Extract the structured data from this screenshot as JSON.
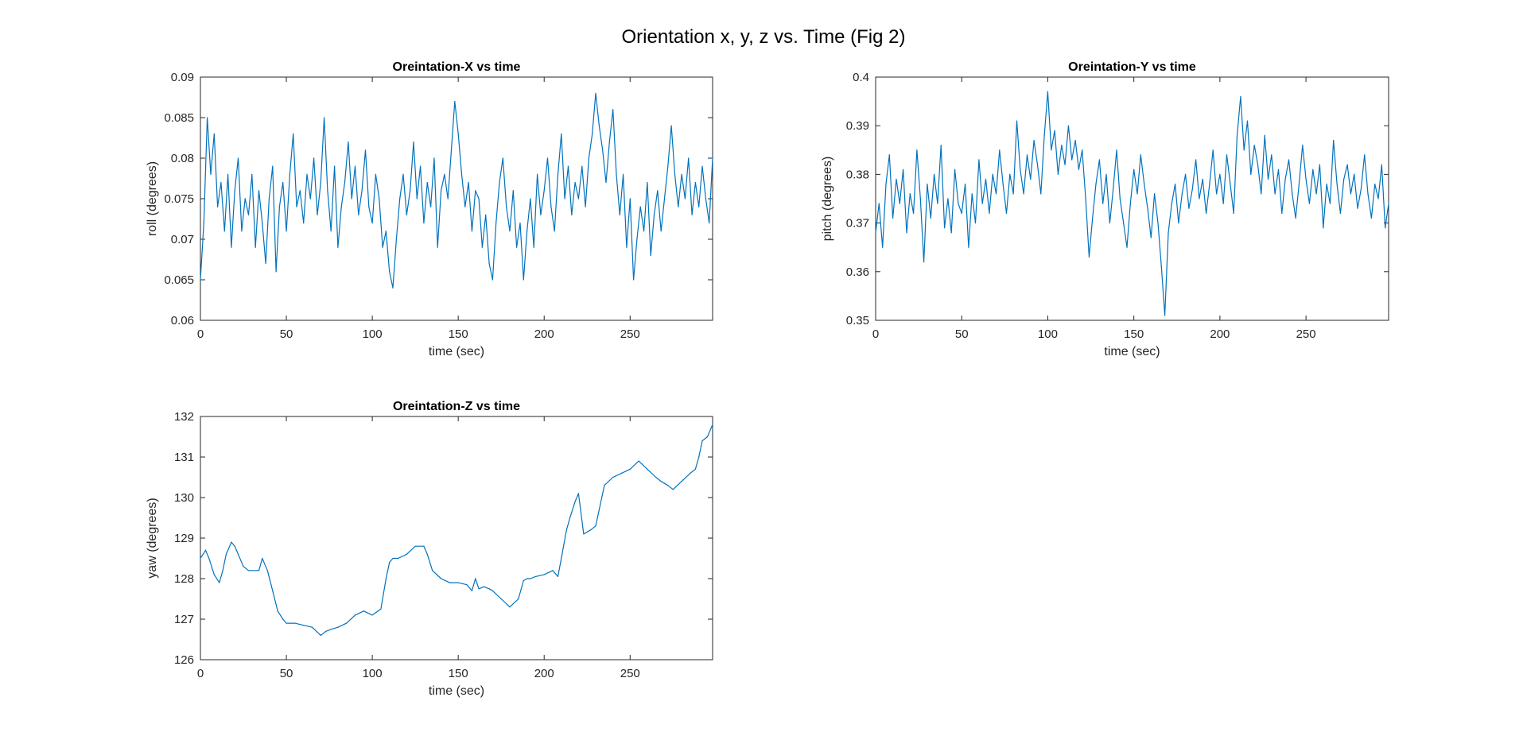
{
  "figure": {
    "title": "Orientation x, y, z vs. Time (Fig 2)"
  },
  "chart_data": [
    {
      "type": "line",
      "title": "Oreintation-X vs time",
      "xlabel": "time (sec)",
      "ylabel": "roll (degrees)",
      "xlim": [
        0,
        298
      ],
      "ylim": [
        0.06,
        0.09
      ],
      "xticks": [
        0,
        50,
        100,
        150,
        200,
        250
      ],
      "xtick_labels": [
        "0",
        "50",
        "100",
        "150",
        "200",
        "250"
      ],
      "yticks": [
        0.06,
        0.065,
        0.07,
        0.075,
        0.08,
        0.085,
        0.09
      ],
      "ytick_labels": [
        "0.06",
        "0.065",
        "0.07",
        "0.075",
        "0.08",
        "0.085",
        "0.09"
      ],
      "grid": false,
      "color": "#0072BD",
      "series": [
        {
          "x": [
            0,
            2,
            4,
            6,
            8,
            10,
            12,
            14,
            16,
            18,
            20,
            22,
            24,
            26,
            28,
            30,
            32,
            34,
            36,
            38,
            40,
            42,
            44,
            46,
            48,
            50,
            52,
            54,
            56,
            58,
            60,
            62,
            64,
            66,
            68,
            70,
            72,
            74,
            76,
            78,
            80,
            82,
            84,
            86,
            88,
            90,
            92,
            94,
            96,
            98,
            100,
            102,
            104,
            106,
            108,
            110,
            112,
            114,
            116,
            118,
            120,
            122,
            124,
            126,
            128,
            130,
            132,
            134,
            136,
            138,
            140,
            142,
            144,
            146,
            148,
            150,
            152,
            154,
            156,
            158,
            160,
            162,
            164,
            166,
            168,
            170,
            172,
            174,
            176,
            178,
            180,
            182,
            184,
            186,
            188,
            190,
            192,
            194,
            196,
            198,
            200,
            202,
            204,
            206,
            208,
            210,
            212,
            214,
            216,
            218,
            220,
            222,
            224,
            226,
            228,
            230,
            232,
            234,
            236,
            238,
            240,
            242,
            244,
            246,
            248,
            250,
            252,
            254,
            256,
            258,
            260,
            262,
            264,
            266,
            268,
            270,
            272,
            274,
            276,
            278,
            280,
            282,
            284,
            286,
            288,
            290,
            292,
            294,
            296,
            298
          ],
          "y": [
            0.065,
            0.072,
            0.085,
            0.078,
            0.083,
            0.074,
            0.077,
            0.071,
            0.078,
            0.069,
            0.076,
            0.08,
            0.071,
            0.075,
            0.073,
            0.078,
            0.069,
            0.076,
            0.072,
            0.067,
            0.075,
            0.079,
            0.066,
            0.074,
            0.077,
            0.071,
            0.078,
            0.083,
            0.074,
            0.076,
            0.072,
            0.078,
            0.075,
            0.08,
            0.073,
            0.077,
            0.085,
            0.076,
            0.071,
            0.079,
            0.069,
            0.074,
            0.077,
            0.082,
            0.075,
            0.079,
            0.073,
            0.076,
            0.081,
            0.074,
            0.072,
            0.078,
            0.075,
            0.069,
            0.071,
            0.066,
            0.064,
            0.07,
            0.075,
            0.078,
            0.073,
            0.076,
            0.082,
            0.075,
            0.079,
            0.072,
            0.077,
            0.074,
            0.08,
            0.069,
            0.076,
            0.078,
            0.075,
            0.081,
            0.087,
            0.083,
            0.078,
            0.074,
            0.077,
            0.071,
            0.076,
            0.075,
            0.069,
            0.073,
            0.067,
            0.065,
            0.072,
            0.077,
            0.08,
            0.074,
            0.071,
            0.076,
            0.069,
            0.072,
            0.065,
            0.071,
            0.075,
            0.069,
            0.078,
            0.073,
            0.076,
            0.08,
            0.074,
            0.071,
            0.078,
            0.083,
            0.075,
            0.079,
            0.073,
            0.077,
            0.075,
            0.079,
            0.074,
            0.08,
            0.083,
            0.088,
            0.084,
            0.081,
            0.077,
            0.082,
            0.086,
            0.078,
            0.073,
            0.078,
            0.069,
            0.075,
            0.065,
            0.07,
            0.074,
            0.071,
            0.077,
            0.068,
            0.073,
            0.076,
            0.071,
            0.075,
            0.079,
            0.084,
            0.078,
            0.074,
            0.078,
            0.075,
            0.08,
            0.073,
            0.077,
            0.074,
            0.079,
            0.075,
            0.072,
            0.08
          ]
        }
      ]
    },
    {
      "type": "line",
      "title": "Oreintation-Y vs time",
      "xlabel": "time (sec)",
      "ylabel": "pitch (degrees)",
      "xlim": [
        0,
        298
      ],
      "ylim": [
        0.35,
        0.4
      ],
      "xticks": [
        0,
        50,
        100,
        150,
        200,
        250
      ],
      "xtick_labels": [
        "0",
        "50",
        "100",
        "150",
        "200",
        "250"
      ],
      "yticks": [
        0.35,
        0.36,
        0.37,
        0.38,
        0.39,
        0.4
      ],
      "ytick_labels": [
        "0.35",
        "0.36",
        "0.37",
        "0.38",
        "0.39",
        "0.4"
      ],
      "grid": false,
      "color": "#0072BD",
      "series": [
        {
          "x": [
            0,
            2,
            4,
            6,
            8,
            10,
            12,
            14,
            16,
            18,
            20,
            22,
            24,
            26,
            28,
            30,
            32,
            34,
            36,
            38,
            40,
            42,
            44,
            46,
            48,
            50,
            52,
            54,
            56,
            58,
            60,
            62,
            64,
            66,
            68,
            70,
            72,
            74,
            76,
            78,
            80,
            82,
            84,
            86,
            88,
            90,
            92,
            94,
            96,
            98,
            100,
            102,
            104,
            106,
            108,
            110,
            112,
            114,
            116,
            118,
            120,
            122,
            124,
            126,
            128,
            130,
            132,
            134,
            136,
            138,
            140,
            142,
            144,
            146,
            148,
            150,
            152,
            154,
            156,
            158,
            160,
            162,
            164,
            166,
            168,
            170,
            172,
            174,
            176,
            178,
            180,
            182,
            184,
            186,
            188,
            190,
            192,
            194,
            196,
            198,
            200,
            202,
            204,
            206,
            208,
            210,
            212,
            214,
            216,
            218,
            220,
            222,
            224,
            226,
            228,
            230,
            232,
            234,
            236,
            238,
            240,
            242,
            244,
            246,
            248,
            250,
            252,
            254,
            256,
            258,
            260,
            262,
            264,
            266,
            268,
            270,
            272,
            274,
            276,
            278,
            280,
            282,
            284,
            286,
            288,
            290,
            292,
            294,
            296,
            298
          ],
          "y": [
            0.368,
            0.374,
            0.365,
            0.378,
            0.384,
            0.371,
            0.379,
            0.374,
            0.381,
            0.368,
            0.376,
            0.372,
            0.385,
            0.375,
            0.362,
            0.378,
            0.371,
            0.38,
            0.374,
            0.386,
            0.369,
            0.375,
            0.368,
            0.381,
            0.374,
            0.372,
            0.378,
            0.365,
            0.376,
            0.37,
            0.383,
            0.374,
            0.379,
            0.372,
            0.38,
            0.376,
            0.385,
            0.378,
            0.372,
            0.38,
            0.376,
            0.391,
            0.381,
            0.376,
            0.384,
            0.379,
            0.387,
            0.382,
            0.376,
            0.388,
            0.397,
            0.385,
            0.389,
            0.38,
            0.386,
            0.382,
            0.39,
            0.383,
            0.387,
            0.381,
            0.385,
            0.375,
            0.363,
            0.371,
            0.378,
            0.383,
            0.374,
            0.38,
            0.37,
            0.377,
            0.385,
            0.375,
            0.37,
            0.365,
            0.374,
            0.381,
            0.376,
            0.384,
            0.378,
            0.373,
            0.367,
            0.376,
            0.37,
            0.361,
            0.351,
            0.368,
            0.374,
            0.378,
            0.37,
            0.376,
            0.38,
            0.373,
            0.377,
            0.383,
            0.375,
            0.379,
            0.372,
            0.378,
            0.385,
            0.376,
            0.38,
            0.374,
            0.384,
            0.378,
            0.372,
            0.388,
            0.396,
            0.385,
            0.391,
            0.38,
            0.386,
            0.382,
            0.376,
            0.388,
            0.379,
            0.384,
            0.376,
            0.381,
            0.372,
            0.379,
            0.383,
            0.376,
            0.371,
            0.378,
            0.386,
            0.379,
            0.374,
            0.381,
            0.376,
            0.382,
            0.369,
            0.378,
            0.374,
            0.387,
            0.378,
            0.372,
            0.379,
            0.382,
            0.376,
            0.38,
            0.373,
            0.377,
            0.384,
            0.376,
            0.371,
            0.378,
            0.375,
            0.382,
            0.369,
            0.374
          ]
        }
      ]
    },
    {
      "type": "line",
      "title": "Oreintation-Z vs time",
      "xlabel": "time (sec)",
      "ylabel": "yaw (degrees)",
      "xlim": [
        0,
        298
      ],
      "ylim": [
        126,
        132
      ],
      "xticks": [
        0,
        50,
        100,
        150,
        200,
        250
      ],
      "xtick_labels": [
        "0",
        "50",
        "100",
        "150",
        "200",
        "250"
      ],
      "yticks": [
        126,
        127,
        128,
        129,
        130,
        131,
        132
      ],
      "ytick_labels": [
        "126",
        "127",
        "128",
        "129",
        "130",
        "131",
        "132"
      ],
      "grid": false,
      "color": "#0072BD",
      "series": [
        {
          "x": [
            0,
            3,
            5,
            8,
            11,
            13,
            15,
            18,
            20,
            22,
            25,
            28,
            30,
            34,
            36,
            39,
            42,
            45,
            48,
            50,
            52,
            55,
            60,
            65,
            70,
            73,
            76,
            80,
            85,
            90,
            95,
            100,
            105,
            108,
            110,
            112,
            115,
            120,
            125,
            130,
            132,
            135,
            140,
            145,
            150,
            155,
            158,
            160,
            162,
            165,
            168,
            170,
            175,
            180,
            185,
            188,
            190,
            192,
            195,
            200,
            205,
            208,
            210,
            213,
            215,
            218,
            220,
            223,
            227,
            230,
            232,
            235,
            240,
            245,
            250,
            255,
            260,
            265,
            268,
            270,
            272,
            275,
            280,
            285,
            288,
            290,
            292,
            295,
            298
          ],
          "y": [
            128.5,
            128.7,
            128.5,
            128.1,
            127.9,
            128.2,
            128.6,
            128.9,
            128.8,
            128.6,
            128.3,
            128.2,
            128.2,
            128.2,
            128.5,
            128.2,
            127.7,
            127.2,
            127,
            126.9,
            126.9,
            126.9,
            126.85,
            126.8,
            126.6,
            126.7,
            126.75,
            126.8,
            126.9,
            127.1,
            127.2,
            127.1,
            127.25,
            128,
            128.4,
            128.5,
            128.5,
            128.6,
            128.8,
            128.8,
            128.6,
            128.2,
            128,
            127.9,
            127.9,
            127.85,
            127.7,
            128,
            127.75,
            127.8,
            127.75,
            127.7,
            127.5,
            127.3,
            127.5,
            127.95,
            128,
            128,
            128.05,
            128.1,
            128.2,
            128.05,
            128.5,
            129.2,
            129.5,
            129.9,
            130.1,
            129.1,
            129.2,
            129.3,
            129.7,
            130.3,
            130.5,
            130.6,
            130.7,
            130.9,
            130.7,
            130.5,
            130.4,
            130.35,
            130.3,
            130.2,
            130.4,
            130.6,
            130.7,
            131,
            131.4,
            131.5,
            131.8
          ]
        }
      ]
    }
  ]
}
